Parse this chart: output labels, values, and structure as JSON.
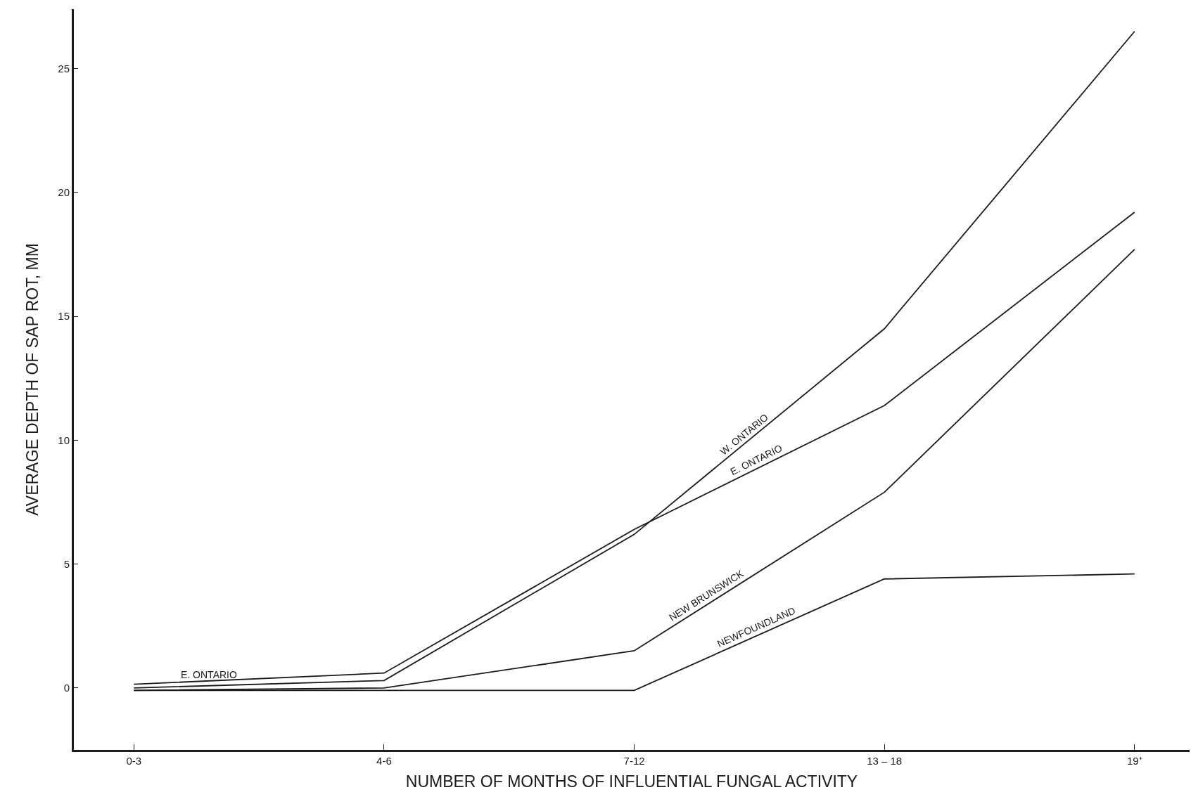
{
  "chart_data": {
    "type": "line",
    "xlabel": "NUMBER OF MONTHS OF INFLUENTIAL FUNGAL ACTIVITY",
    "ylabel": "AVERAGE DEPTH OF SAP ROT, MM",
    "categories": [
      "0-3",
      "4-6",
      "7-12",
      "13 – 18",
      "19⁺"
    ],
    "series": [
      {
        "name": "W. ONTARIO",
        "color": "#1a1a1a",
        "values": [
          0,
          0.3,
          6.2,
          14.5,
          26.5
        ]
      },
      {
        "name": "E. ONTARIO",
        "color": "#1a1a1a",
        "values": [
          0.15,
          0.6,
          6.4,
          11.4,
          19.2
        ]
      },
      {
        "name": "NEW BRUNSWICK",
        "color": "#1a1a1a",
        "values": [
          -0.1,
          0,
          1.5,
          7.9,
          17.7
        ]
      },
      {
        "name": "NEWFOUNDLAND",
        "color": "#1a1a1a",
        "values": [
          -0.1,
          -0.1,
          -0.1,
          4.4,
          4.6
        ]
      }
    ],
    "annotations": [
      "E. ONTARIO"
    ],
    "ylim": [
      -2.5,
      27.4
    ],
    "yticks": [
      0,
      5,
      10,
      15,
      20,
      25
    ],
    "grid": false,
    "legend": false,
    "marker": "none",
    "line_style": "solid"
  }
}
